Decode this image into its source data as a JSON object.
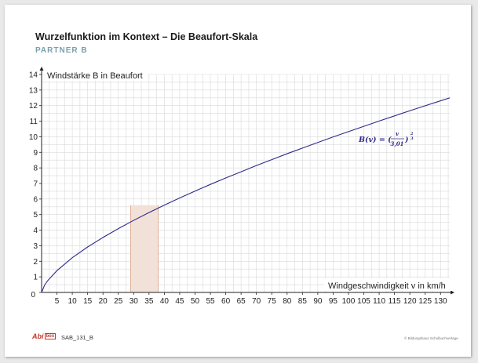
{
  "header": {
    "title": "Wurzelfunktion im Kontext – Die Beaufort-Skala",
    "subtitle": "PARTNER B"
  },
  "footer": {
    "logo_text": "Abi",
    "logo_box": "box",
    "code": "SAB_131_B",
    "copyright": "© Bildungshaus Schulbuchverlage"
  },
  "chart_data": {
    "type": "line",
    "xlabel": "Windgeschwindigkeit v in km/h",
    "ylabel": "Windstärke B in Beaufort",
    "xlim": [
      0,
      133
    ],
    "ylim": [
      0,
      14
    ],
    "x_ticks": [
      5,
      10,
      15,
      20,
      25,
      30,
      35,
      40,
      45,
      50,
      55,
      60,
      65,
      70,
      75,
      80,
      85,
      90,
      95,
      100,
      105,
      110,
      115,
      120,
      125,
      130
    ],
    "y_ticks": [
      0,
      1,
      2,
      3,
      4,
      5,
      6,
      7,
      8,
      9,
      10,
      11,
      12,
      13,
      14
    ],
    "grid": true,
    "grid_minor_step_x": 2.5,
    "grid_minor_step_y": 0.5,
    "formula": {
      "lhs": "B(v) = (",
      "numerator": "v",
      "denominator": "3,01",
      "rhs_close": ")",
      "exponent_numerator": "2",
      "exponent_denominator": "3"
    },
    "series": [
      {
        "function": "(v/3.01)^(2/3)",
        "x": [
          0,
          1,
          2,
          5,
          10,
          15,
          20,
          25,
          30,
          35,
          40,
          45,
          50,
          55,
          60,
          65,
          70,
          75,
          80,
          85,
          90,
          95,
          100,
          105,
          110,
          115,
          120,
          125,
          130,
          133
        ],
        "values": [
          0,
          0.48,
          0.76,
          1.4,
          2.23,
          2.92,
          3.53,
          4.1,
          4.63,
          5.13,
          5.61,
          6.07,
          6.51,
          6.94,
          7.35,
          7.75,
          8.15,
          8.53,
          8.91,
          9.27,
          9.63,
          9.99,
          10.33,
          10.67,
          11.01,
          11.34,
          11.67,
          11.99,
          12.31,
          12.5
        ],
        "color": "#2c2a8c"
      }
    ],
    "highlight_region": {
      "x_from": 29,
      "x_to": 38,
      "fill": "#f2e1d8",
      "edge": "#d9a38a"
    },
    "colors": {
      "grid": "#d9d9d9",
      "axis": "#222222",
      "curve": "#2c2a8c"
    }
  }
}
